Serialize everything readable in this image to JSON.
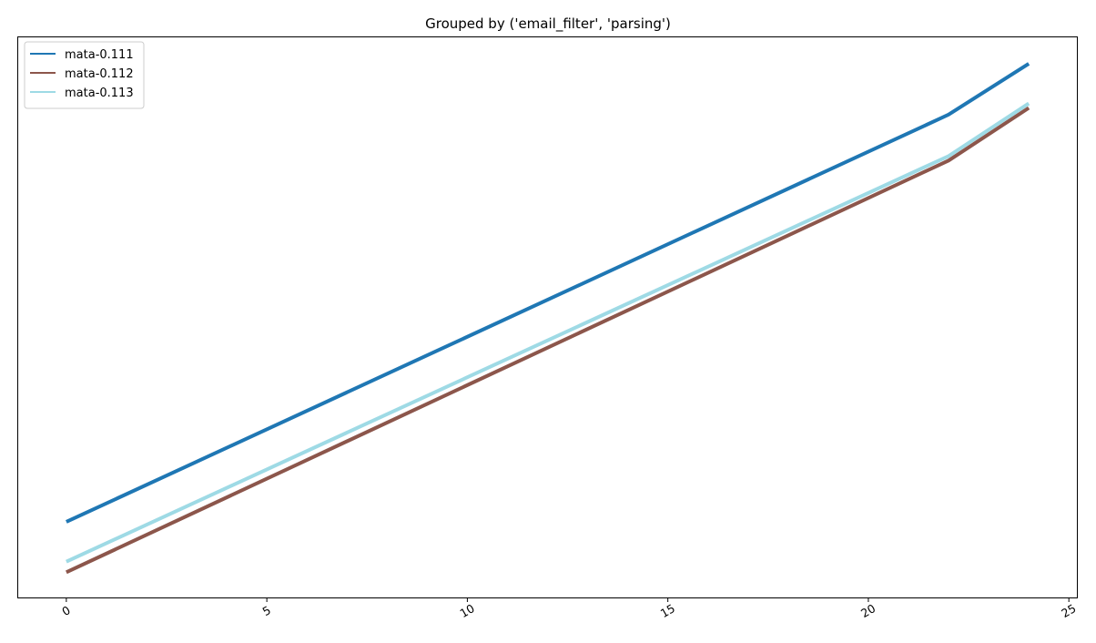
{
  "chart_data": {
    "type": "line",
    "title": "Grouped by ('email_filter', 'parsing')",
    "xlabel": "",
    "ylabel": "",
    "xlim": [
      -1.2,
      25.2
    ],
    "ylim": [
      0,
      1
    ],
    "x_ticks": [
      0,
      5,
      10,
      15,
      20,
      25
    ],
    "x_tick_labels": [
      "0",
      "5",
      "10",
      "15",
      "20",
      "25"
    ],
    "y_ticks_shown": false,
    "grid": false,
    "legend_position": "top-left",
    "series": [
      {
        "name": "mata-0.111",
        "color": "#1f77b4",
        "x": [
          0,
          22,
          24
        ],
        "y": [
          0.135,
          0.862,
          0.953
        ]
      },
      {
        "name": "mata-0.112",
        "color": "#8c564b",
        "x": [
          0,
          22,
          24
        ],
        "y": [
          0.045,
          0.78,
          0.874
        ]
      },
      {
        "name": "mata-0.113",
        "color": "#9edae5",
        "x": [
          0,
          22,
          24
        ],
        "y": [
          0.064,
          0.788,
          0.882
        ]
      }
    ]
  }
}
